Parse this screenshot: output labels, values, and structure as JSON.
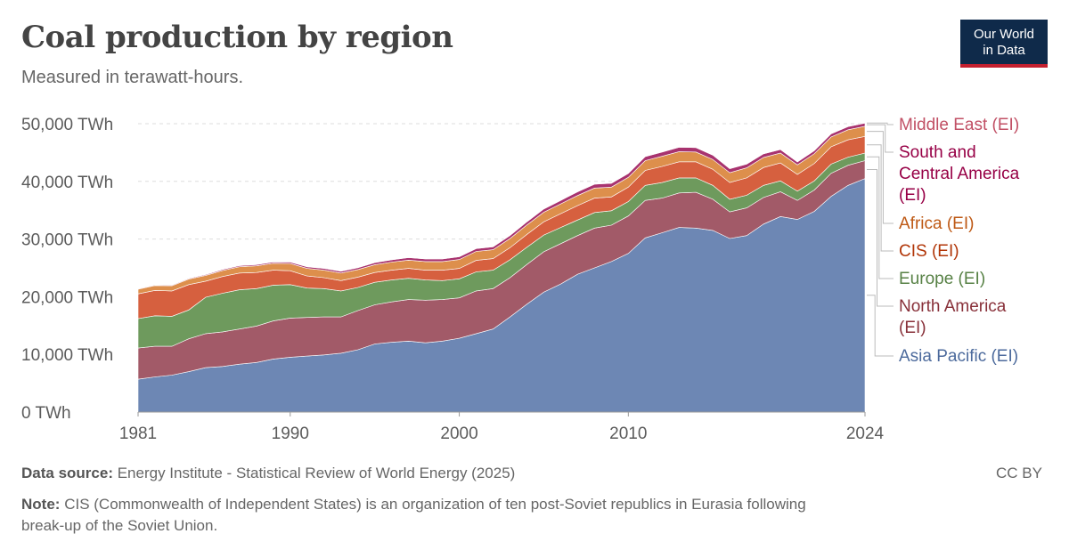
{
  "header": {
    "title": "Coal production by region",
    "subtitle": "Measured in terawatt-hours.",
    "logo_line1": "Our World",
    "logo_line2": "in Data"
  },
  "footer": {
    "source_label": "Data source:",
    "source_text": "Energy Institute - Statistical Review of World Energy (2025)",
    "license": "CC BY",
    "note_label": "Note:",
    "note_line1": "CIS (Commonwealth of Independent States) is an organization of ten post-Soviet republics in Eurasia following",
    "note_line2": "break-up of the Soviet Union."
  },
  "chart_data": {
    "type": "area",
    "stacked": true,
    "title": "Coal production by region",
    "subtitle": "Measured in terawatt-hours.",
    "x": [
      1981,
      1982,
      1983,
      1984,
      1985,
      1986,
      1987,
      1988,
      1989,
      1990,
      1991,
      1992,
      1993,
      1994,
      1995,
      1996,
      1997,
      1998,
      1999,
      2000,
      2001,
      2002,
      2003,
      2004,
      2005,
      2006,
      2007,
      2008,
      2009,
      2010,
      2011,
      2012,
      2013,
      2014,
      2015,
      2016,
      2017,
      2018,
      2019,
      2020,
      2021,
      2022,
      2023,
      2024
    ],
    "x_ticks": [
      "1981",
      "1990",
      "2000",
      "2010",
      "2024"
    ],
    "y_ticks": [
      "0 TWh",
      "10,000 TWh",
      "20,000 TWh",
      "30,000 TWh",
      "40,000 TWh",
      "50,000 TWh"
    ],
    "ylim": [
      0,
      50000
    ],
    "grid": "horizontal dashed",
    "legend": "right, labels at series end",
    "series": [
      {
        "name": "Asia Pacific (EI)",
        "color": "#6d87b4",
        "label_color": "#4c6a9c",
        "values": [
          5700,
          6100,
          6400,
          7000,
          7700,
          7900,
          8300,
          8600,
          9200,
          9500,
          9700,
          9900,
          10200,
          10800,
          11800,
          12100,
          12300,
          12000,
          12300,
          12800,
          13600,
          14400,
          16500,
          18700,
          20800,
          22200,
          23900,
          25000,
          26100,
          27500,
          30200,
          31100,
          32000,
          31900,
          31500,
          30100,
          30600,
          32600,
          33900,
          33400,
          34800,
          37400,
          39300,
          40500
        ]
      },
      {
        "name": "North America (EI)",
        "color": "#a25a68",
        "label_color": "#883039",
        "values": [
          5400,
          5300,
          5000,
          5700,
          5900,
          6000,
          6100,
          6300,
          6600,
          6800,
          6700,
          6600,
          6300,
          6800,
          6800,
          7000,
          7200,
          7400,
          7200,
          7000,
          7400,
          7000,
          6800,
          6900,
          7000,
          7000,
          6700,
          6900,
          6300,
          6500,
          6500,
          6000,
          6000,
          6200,
          5400,
          4600,
          4800,
          4600,
          4300,
          3300,
          3700,
          4000,
          3500,
          3100
        ]
      },
      {
        "name": "Europe (EI)",
        "color": "#6e9a5d",
        "label_color": "#578145",
        "values": [
          5100,
          5300,
          5200,
          5000,
          6300,
          6700,
          6800,
          6500,
          6200,
          5800,
          5100,
          4900,
          4500,
          4000,
          3900,
          3800,
          3700,
          3500,
          3300,
          3300,
          3300,
          3200,
          3100,
          3000,
          2900,
          2800,
          2700,
          2700,
          2500,
          2500,
          2600,
          2700,
          2600,
          2500,
          2400,
          2200,
          2200,
          2100,
          1900,
          1600,
          1600,
          1600,
          1400,
          1300
        ]
      },
      {
        "name": "CIS (EI)",
        "color": "#d6603f",
        "label_color": "#b13507",
        "values": [
          4300,
          4400,
          4400,
          4400,
          2800,
          2900,
          2900,
          2800,
          2600,
          2400,
          2100,
          1900,
          1800,
          1800,
          1700,
          1700,
          1700,
          1700,
          1800,
          1800,
          2000,
          2000,
          2100,
          2200,
          2300,
          2400,
          2500,
          2500,
          2400,
          2500,
          2600,
          2800,
          2800,
          2800,
          2800,
          2900,
          3000,
          3100,
          3100,
          2900,
          3000,
          3000,
          3000,
          2900
        ]
      },
      {
        "name": "Africa (EI)",
        "color": "#dd8f4c",
        "label_color": "#be5915",
        "values": [
          800,
          850,
          900,
          950,
          1000,
          1050,
          1100,
          1150,
          1200,
          1250,
          1300,
          1300,
          1300,
          1300,
          1350,
          1400,
          1450,
          1500,
          1500,
          1550,
          1550,
          1550,
          1600,
          1650,
          1650,
          1700,
          1750,
          1750,
          1700,
          1700,
          1700,
          1750,
          1750,
          1700,
          1700,
          1700,
          1750,
          1750,
          1700,
          1650,
          1700,
          1700,
          1750,
          1750
        ]
      },
      {
        "name": "South and Central America (EI)",
        "color": "#a8336f",
        "label_color": "#970046",
        "values": [
          100,
          110,
          120,
          140,
          160,
          180,
          200,
          220,
          240,
          260,
          280,
          300,
          310,
          330,
          360,
          400,
          420,
          440,
          460,
          480,
          500,
          500,
          520,
          540,
          560,
          600,
          640,
          660,
          660,
          680,
          700,
          740,
          760,
          760,
          760,
          700,
          660,
          640,
          620,
          520,
          520,
          560,
          560,
          560
        ]
      },
      {
        "name": "Middle East (EI)",
        "color": "#e0567a",
        "label_color": "#c15065",
        "values": [
          10,
          10,
          10,
          10,
          10,
          10,
          10,
          10,
          10,
          10,
          10,
          10,
          10,
          10,
          10,
          10,
          10,
          10,
          10,
          10,
          10,
          10,
          10,
          10,
          10,
          10,
          10,
          10,
          10,
          10,
          10,
          10,
          10,
          10,
          10,
          10,
          10,
          10,
          10,
          10,
          10,
          10,
          10,
          10
        ]
      }
    ]
  }
}
